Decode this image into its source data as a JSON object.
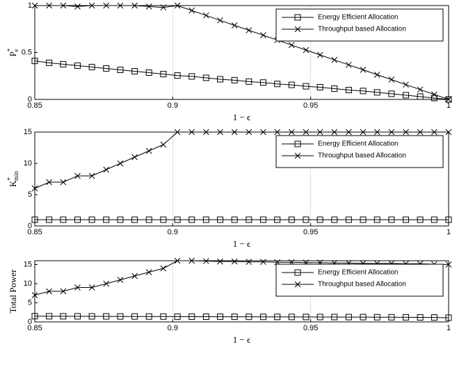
{
  "chart_data": [
    {
      "type": "line",
      "ylabel": {
        "base": "P",
        "sub": "e",
        "sup": "*"
      },
      "xlabel": "1 − ϵ",
      "x": [
        0.85,
        0.8552,
        0.8603,
        0.8655,
        0.8707,
        0.8759,
        0.881,
        0.8862,
        0.8914,
        0.8966,
        0.9017,
        0.9069,
        0.9121,
        0.9172,
        0.9224,
        0.9276,
        0.9328,
        0.9379,
        0.9431,
        0.9483,
        0.9534,
        0.9586,
        0.9638,
        0.969,
        0.9741,
        0.9793,
        0.9845,
        0.9897,
        0.9948,
        1
      ],
      "series": [
        {
          "name": "Energy Efficient Allocation",
          "color": "#000000",
          "marker": "square",
          "values": [
            0.41,
            0.39,
            0.375,
            0.36,
            0.345,
            0.33,
            0.315,
            0.3,
            0.285,
            0.27,
            0.255,
            0.245,
            0.23,
            0.215,
            0.205,
            0.19,
            0.18,
            0.165,
            0.155,
            0.14,
            0.13,
            0.115,
            0.1,
            0.09,
            0.075,
            0.06,
            0.045,
            0.03,
            0.015,
            0
          ]
        },
        {
          "name": "Throughput based Allocation",
          "color": "#000000",
          "marker": "x",
          "values": [
            1,
            1,
            1,
            0.99,
            1,
            1,
            1,
            1,
            0.99,
            0.98,
            1,
            0.947,
            0.895,
            0.842,
            0.789,
            0.737,
            0.684,
            0.632,
            0.579,
            0.526,
            0.474,
            0.421,
            0.368,
            0.316,
            0.263,
            0.211,
            0.158,
            0.105,
            0.053,
            0
          ]
        }
      ],
      "xlim": [
        0.85,
        1
      ],
      "xticks": [
        0.85,
        0.9,
        0.95,
        1
      ],
      "ylim": [
        0,
        1
      ],
      "yticks": [
        0,
        0.5,
        1
      ],
      "xgrid": true,
      "legend": "upper-right"
    },
    {
      "type": "line",
      "ylabel": {
        "base": "K",
        "sub": "min",
        "sup": "*"
      },
      "xlabel": "1 − ϵ",
      "x": [
        0.85,
        0.8552,
        0.8603,
        0.8655,
        0.8707,
        0.8759,
        0.881,
        0.8862,
        0.8914,
        0.8966,
        0.9017,
        0.9069,
        0.9121,
        0.9172,
        0.9224,
        0.9276,
        0.9328,
        0.9379,
        0.9431,
        0.9483,
        0.9534,
        0.9586,
        0.9638,
        0.969,
        0.9741,
        0.9793,
        0.9845,
        0.9897,
        0.9948,
        1
      ],
      "series": [
        {
          "name": "Energy Efficient Allocation",
          "color": "#000000",
          "marker": "square",
          "values": [
            1,
            1,
            1,
            1,
            1,
            1,
            1,
            1,
            1,
            1,
            1,
            1,
            1,
            1,
            1,
            1,
            1,
            1,
            1,
            1,
            1,
            1,
            1,
            1,
            1,
            1,
            1,
            1,
            1,
            1
          ]
        },
        {
          "name": "Throughput based Allocation",
          "color": "#000000",
          "marker": "x",
          "values": [
            6,
            7,
            7,
            8,
            8,
            9,
            10,
            11,
            12,
            13,
            15,
            15,
            15,
            15,
            15,
            15,
            15,
            15,
            15,
            15,
            15,
            15,
            15,
            15,
            15,
            15,
            15,
            15,
            15,
            15
          ]
        }
      ],
      "xlim": [
        0.85,
        1
      ],
      "xticks": [
        0.85,
        0.9,
        0.95,
        1
      ],
      "ylim": [
        0,
        15
      ],
      "yticks": [
        0,
        5,
        10,
        15
      ],
      "xgrid": true,
      "legend": "upper-right"
    },
    {
      "type": "line",
      "ylabel": {
        "base": "Total Power"
      },
      "xlabel": "1 − ϵ",
      "x": [
        0.85,
        0.8552,
        0.8603,
        0.8655,
        0.8707,
        0.8759,
        0.881,
        0.8862,
        0.8914,
        0.8966,
        0.9017,
        0.9069,
        0.9121,
        0.9172,
        0.9224,
        0.9276,
        0.9328,
        0.9379,
        0.9431,
        0.9483,
        0.9534,
        0.9586,
        0.9638,
        0.969,
        0.9741,
        0.9793,
        0.9845,
        0.9897,
        0.9948,
        1
      ],
      "series": [
        {
          "name": "Energy Efficient Allocation",
          "color": "#000000",
          "marker": "square",
          "values": [
            1.5,
            1.48,
            1.47,
            1.46,
            1.45,
            1.44,
            1.43,
            1.42,
            1.41,
            1.4,
            1.38,
            1.37,
            1.36,
            1.35,
            1.34,
            1.33,
            1.32,
            1.31,
            1.3,
            1.29,
            1.28,
            1.27,
            1.26,
            1.25,
            1.23,
            1.22,
            1.2,
            1.18,
            1.15,
            1.1
          ]
        },
        {
          "name": "Throughput based Allocation",
          "color": "#000000",
          "marker": "x",
          "values": [
            7,
            8,
            8,
            9,
            9,
            10,
            11,
            12,
            13,
            14,
            16,
            16,
            15.9,
            15.8,
            15.8,
            15.7,
            15.7,
            15.6,
            15.6,
            15.5,
            15.5,
            15.4,
            15.4,
            15.3,
            15.3,
            15.3,
            15.2,
            15.2,
            15.1,
            15
          ]
        }
      ],
      "xlim": [
        0.85,
        1
      ],
      "xticks": [
        0.85,
        0.9,
        0.95,
        1
      ],
      "ylim": [
        0,
        16
      ],
      "yticks": [
        0,
        5,
        10,
        15
      ],
      "xgrid": true,
      "legend": "upper-right"
    }
  ]
}
